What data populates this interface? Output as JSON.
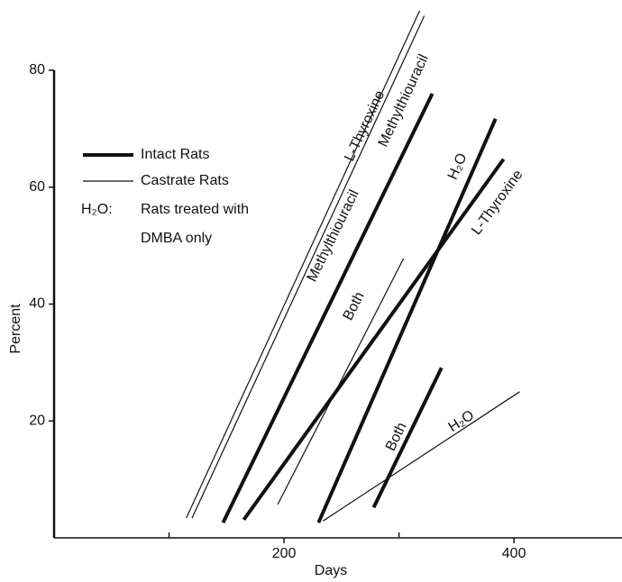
{
  "chart_data": {
    "type": "line",
    "x_label": "Days",
    "y_label": "Percent",
    "xlim": [
      0,
      494
    ],
    "ylim": [
      0,
      80
    ],
    "xticks": [
      200,
      400
    ],
    "x_minor_ticks": [
      100,
      300
    ],
    "yticks": [
      20,
      40,
      60,
      80
    ],
    "legend": [
      {
        "label": "Intact Rats",
        "line_width": 4
      },
      {
        "label": "Castrate Rats",
        "line_width": 1.2
      }
    ],
    "legend_note": {
      "key": "H₂O:",
      "lines": [
        "Rats treated with",
        "DMBA only"
      ]
    },
    "series": [
      {
        "name": "L-Thyroxine",
        "color": "#111111",
        "line_width": 1.2,
        "x": [
          115,
          318
        ],
        "values": [
          3.4,
          90.2
        ]
      },
      {
        "name": "Methylthiouracil",
        "color": "#111111",
        "line_width": 1.2,
        "x": [
          120,
          322
        ],
        "values": [
          3.4,
          89.3
        ]
      },
      {
        "name": "Both",
        "color": "#111111",
        "line_width": 1.2,
        "x": [
          194.5,
          304
        ],
        "values": [
          5.7,
          47.8
        ]
      },
      {
        "name": "H₂O",
        "color": "#111111",
        "line_width": 1.2,
        "x": [
          234,
          405
        ],
        "values": [
          2.9,
          25
        ]
      },
      {
        "name": "Methylthiouracil",
        "color": "#111111",
        "line_width": 4,
        "x": [
          147,
          329
        ],
        "values": [
          2.6,
          76
        ]
      },
      {
        "name": "L-Thyroxine",
        "color": "#111111",
        "line_width": 4,
        "x": [
          165,
          391
        ],
        "values": [
          3.1,
          64.8
        ]
      },
      {
        "name": "H₂O",
        "color": "#111111",
        "line_width": 4,
        "x": [
          230,
          384
        ],
        "values": [
          2.6,
          71.7
        ]
      },
      {
        "name": "Both",
        "color": "#111111",
        "line_width": 4,
        "x": [
          278,
          337
        ],
        "values": [
          5.2,
          29.1
        ]
      }
    ]
  }
}
